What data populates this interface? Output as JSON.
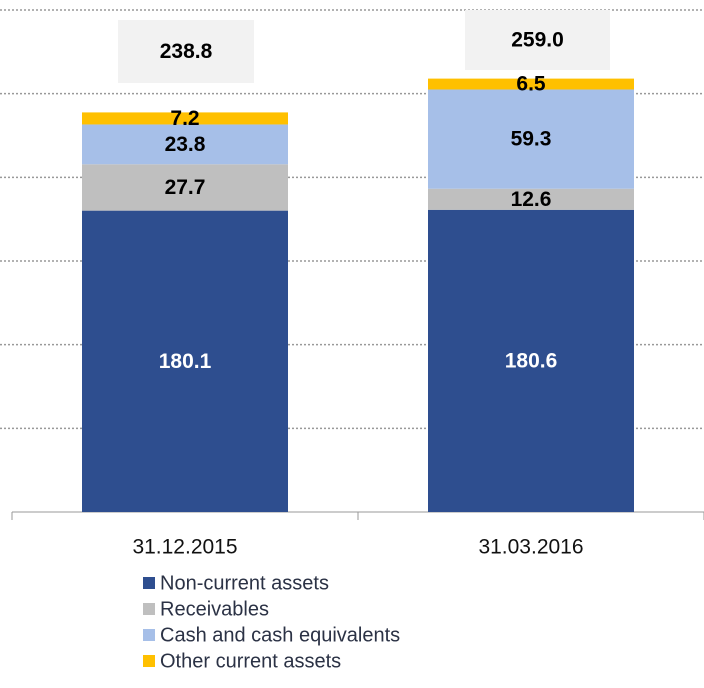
{
  "chart_data": {
    "type": "stacked_bar",
    "categories": [
      "31.12.2015",
      "31.03.2016"
    ],
    "series": [
      {
        "name": "Non-current assets",
        "color": "#2e4e8f",
        "values": [
          180.1,
          180.6
        ]
      },
      {
        "name": "Receivables",
        "color": "#bfbfbf",
        "values": [
          27.7,
          12.6
        ]
      },
      {
        "name": "Cash and cash equivalents",
        "color": "#a6bfe8",
        "values": [
          23.8,
          59.3
        ]
      },
      {
        "name": "Other current assets",
        "color": "#ffc000",
        "values": [
          7.2,
          6.5
        ]
      }
    ],
    "totals": [
      238.8,
      259.0
    ],
    "total_labels": [
      "238.8",
      "259.0"
    ],
    "ylim": [
      0,
      300
    ],
    "yticks": [
      0,
      50,
      100,
      150,
      200,
      250,
      300
    ],
    "grid": true
  }
}
